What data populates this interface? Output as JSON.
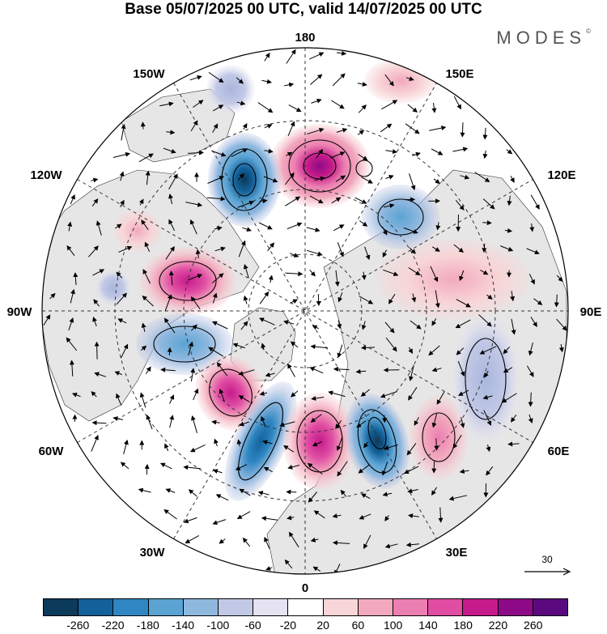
{
  "title": "Base 05/07/2025 00 UTC, valid 14/07/2025 00 UTC",
  "brand": "MODES",
  "brand_mark": "©",
  "map": {
    "projection": "north-polar-stereographic",
    "longitude_labels": {
      "top": "180",
      "bottom": "0",
      "left": "90W",
      "right": "90E",
      "upper_left_1": "150W",
      "upper_left_2": "120W",
      "lower_left_1": "60W",
      "lower_left_2": "30W",
      "upper_right_1": "150E",
      "upper_right_2": "120E",
      "lower_right_1": "60E",
      "lower_right_2": "30E"
    },
    "colors": {
      "land": "#e6e6e6",
      "ocean": "#ffffff",
      "grid": "#333333"
    },
    "anomalies": [
      {
        "name": "positive-anomaly-180",
        "value": 220
      },
      {
        "name": "negative-anomaly-135w",
        "value": -220
      },
      {
        "name": "positive-anomaly-canada",
        "value": 180
      },
      {
        "name": "negative-anomaly-hudson",
        "value": -140
      },
      {
        "name": "positive-anomaly-atlantic",
        "value": 180
      },
      {
        "name": "negative-anomaly-atlantic",
        "value": -180
      },
      {
        "name": "positive-anomaly-europe",
        "value": 180
      },
      {
        "name": "negative-anomaly-russia",
        "value": -220
      },
      {
        "name": "positive-anomaly-caspian",
        "value": 140
      },
      {
        "name": "negative-anomaly-siberia",
        "value": -100
      },
      {
        "name": "negative-anomaly-east-asia",
        "value": -140
      },
      {
        "name": "positive-anomaly-siberia",
        "value": 60
      }
    ]
  },
  "reference_vector": {
    "value": "30"
  },
  "colorbar": {
    "colors": [
      "#0b3a5a",
      "#13619a",
      "#2f86c2",
      "#5aa3d3",
      "#8fb8df",
      "#c2c9e6",
      "#e5e3f1",
      "#ffffff",
      "#f8d5d7",
      "#f2a9bd",
      "#ec7fb1",
      "#e04da3",
      "#c51b8a",
      "#8d0a86",
      "#5a0a7e"
    ],
    "tick_labels": [
      "-260",
      "-220",
      "-180",
      "-140",
      "-100",
      "-60",
      "-20",
      "20",
      "60",
      "100",
      "140",
      "180",
      "220",
      "260"
    ]
  }
}
